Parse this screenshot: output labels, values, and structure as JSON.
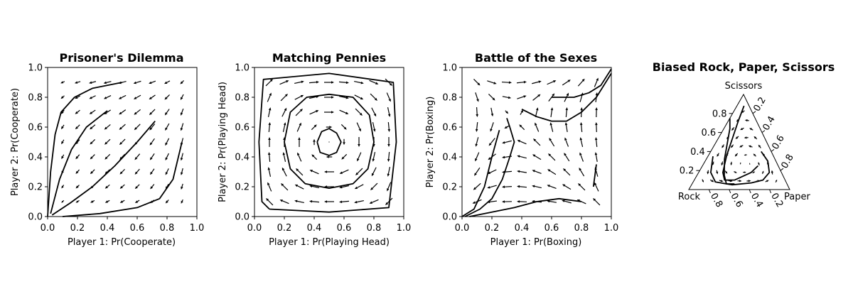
{
  "figure": {
    "background": "#ffffff",
    "ink_color": "#000000"
  },
  "chart_data": [
    {
      "type": "vector-field",
      "title": "Prisoner's Dilemma",
      "xlabel": "Player 1: Pr(Cooperate)",
      "ylabel": "Player 2: Pr(Cooperate)",
      "xlim": [
        0,
        1
      ],
      "ylim": [
        0,
        1
      ],
      "xticks": [
        "0.0",
        "0.2",
        "0.4",
        "0.6",
        "0.8",
        "1.0"
      ],
      "yticks": [
        "0.0",
        "0.2",
        "0.4",
        "0.6",
        "0.8",
        "1.0"
      ],
      "arrow_grid": [
        0.1,
        0.2,
        0.3,
        0.4,
        0.5,
        0.6,
        0.7,
        0.8,
        0.9
      ],
      "field": "prisoners_dilemma",
      "trajectories": [
        [
          [
            0.0,
            0.0
          ],
          [
            0.02,
            0.3
          ],
          [
            0.05,
            0.55
          ],
          [
            0.09,
            0.7
          ],
          [
            0.18,
            0.8
          ],
          [
            0.3,
            0.86
          ],
          [
            0.5,
            0.9
          ]
        ],
        [
          [
            0.02,
            0.02
          ],
          [
            0.08,
            0.25
          ],
          [
            0.16,
            0.45
          ],
          [
            0.26,
            0.6
          ],
          [
            0.4,
            0.71
          ]
        ],
        [
          [
            0.03,
            0.01
          ],
          [
            0.15,
            0.09
          ],
          [
            0.3,
            0.2
          ],
          [
            0.45,
            0.34
          ],
          [
            0.6,
            0.5
          ],
          [
            0.72,
            0.64
          ]
        ],
        [
          [
            0.1,
            0.0
          ],
          [
            0.35,
            0.02
          ],
          [
            0.6,
            0.06
          ],
          [
            0.75,
            0.12
          ],
          [
            0.84,
            0.25
          ],
          [
            0.9,
            0.5
          ]
        ]
      ]
    },
    {
      "type": "vector-field",
      "title": "Matching Pennies",
      "xlabel": "Player 1: Pr(Playing Head)",
      "ylabel": "Player 2: Pr(Playing Head)",
      "xlim": [
        0,
        1
      ],
      "ylim": [
        0,
        1
      ],
      "xticks": [
        "0.0",
        "0.2",
        "0.4",
        "0.6",
        "0.8",
        "1.0"
      ],
      "yticks": [
        "0.0",
        "0.2",
        "0.4",
        "0.6",
        "0.8",
        "1.0"
      ],
      "arrow_grid": [
        0.1,
        0.2,
        0.3,
        0.4,
        0.5,
        0.6,
        0.7,
        0.8,
        0.9
      ],
      "field": "matching_pennies",
      "trajectories": [
        [
          [
            0.1,
            0.05
          ],
          [
            0.5,
            0.03
          ],
          [
            0.9,
            0.06
          ],
          [
            0.95,
            0.5
          ],
          [
            0.93,
            0.9
          ],
          [
            0.5,
            0.96
          ],
          [
            0.06,
            0.92
          ],
          [
            0.03,
            0.5
          ],
          [
            0.05,
            0.1
          ],
          [
            0.1,
            0.05
          ]
        ],
        [
          [
            0.2,
            0.5
          ],
          [
            0.24,
            0.7
          ],
          [
            0.35,
            0.8
          ],
          [
            0.5,
            0.82
          ],
          [
            0.66,
            0.8
          ],
          [
            0.77,
            0.68
          ],
          [
            0.8,
            0.5
          ],
          [
            0.76,
            0.32
          ],
          [
            0.66,
            0.22
          ],
          [
            0.5,
            0.19
          ],
          [
            0.34,
            0.22
          ],
          [
            0.24,
            0.32
          ],
          [
            0.2,
            0.5
          ]
        ],
        [
          [
            0.42,
            0.5
          ],
          [
            0.45,
            0.57
          ],
          [
            0.5,
            0.59
          ],
          [
            0.55,
            0.56
          ],
          [
            0.58,
            0.5
          ],
          [
            0.55,
            0.43
          ],
          [
            0.5,
            0.41
          ],
          [
            0.44,
            0.43
          ],
          [
            0.42,
            0.5
          ]
        ]
      ]
    },
    {
      "type": "vector-field",
      "title": "Battle of the Sexes",
      "xlabel": "Player 1: Pr(Boxing)",
      "ylabel": "Player 2: Pr(Boxing)",
      "xlim": [
        0,
        1
      ],
      "ylim": [
        0,
        1
      ],
      "xticks": [
        "0.0",
        "0.2",
        "0.4",
        "0.6",
        "0.8",
        "1.0"
      ],
      "yticks": [
        "0.0",
        "0.2",
        "0.4",
        "0.6",
        "0.8",
        "1.0"
      ],
      "arrow_grid": [
        0.1,
        0.2,
        0.3,
        0.4,
        0.5,
        0.6,
        0.7,
        0.8,
        0.9
      ],
      "field": "battle_of_sexes",
      "trajectories": [
        [
          [
            0.0,
            0.0
          ],
          [
            0.08,
            0.05
          ],
          [
            0.15,
            0.2
          ],
          [
            0.2,
            0.4
          ],
          [
            0.25,
            0.58
          ]
        ],
        [
          [
            0.02,
            0.0
          ],
          [
            0.12,
            0.05
          ],
          [
            0.2,
            0.12
          ],
          [
            0.27,
            0.25
          ],
          [
            0.32,
            0.4
          ],
          [
            0.35,
            0.5
          ],
          [
            0.32,
            0.6
          ],
          [
            0.3,
            0.66
          ]
        ],
        [
          [
            0.05,
            0.0
          ],
          [
            0.2,
            0.03
          ],
          [
            0.35,
            0.06
          ],
          [
            0.5,
            0.1
          ],
          [
            0.65,
            0.12
          ],
          [
            0.8,
            0.1
          ]
        ],
        [
          [
            0.4,
            0.72
          ],
          [
            0.5,
            0.67
          ],
          [
            0.6,
            0.64
          ],
          [
            0.7,
            0.64
          ],
          [
            0.8,
            0.7
          ],
          [
            0.9,
            0.8
          ],
          [
            1.0,
            0.96
          ]
        ],
        [
          [
            0.6,
            0.8
          ],
          [
            0.75,
            0.8
          ],
          [
            0.85,
            0.83
          ],
          [
            0.93,
            0.88
          ],
          [
            1.0,
            0.99
          ]
        ],
        [
          [
            0.9,
            0.35
          ],
          [
            0.88,
            0.2
          ]
        ]
      ]
    },
    {
      "type": "ternary-vector-field",
      "title": "Biased Rock, Paper, Scissors",
      "corner_labels": {
        "bottom_left": "Rock",
        "bottom_right": "Paper",
        "top": "Scissors"
      },
      "left_ticks": [
        "0.2",
        "0.4",
        "0.6",
        "0.8"
      ],
      "right_ticks": [
        "0.2",
        "0.4",
        "0.6",
        "0.8"
      ],
      "bottom_ticks": [
        "0.8",
        "0.6",
        "0.4",
        "0.2"
      ],
      "trajectories": [
        [
          [
            0.25,
            0.0,
            0.75
          ],
          [
            0.3,
            0.06,
            0.64
          ],
          [
            0.4,
            0.12,
            0.48
          ],
          [
            0.5,
            0.18,
            0.32
          ],
          [
            0.58,
            0.27,
            0.15
          ],
          [
            0.6,
            0.34,
            0.06
          ],
          [
            0.52,
            0.42,
            0.06
          ]
        ],
        [
          [
            0.05,
            0.07,
            0.88
          ],
          [
            0.18,
            0.1,
            0.72
          ],
          [
            0.32,
            0.14,
            0.54
          ],
          [
            0.46,
            0.18,
            0.36
          ],
          [
            0.58,
            0.24,
            0.18
          ],
          [
            0.6,
            0.3,
            0.1
          ],
          [
            0.5,
            0.4,
            0.1
          ],
          [
            0.3,
            0.52,
            0.18
          ],
          [
            0.2,
            0.55,
            0.25
          ]
        ],
        [
          [
            0.6,
            0.05,
            0.35
          ],
          [
            0.7,
            0.12,
            0.18
          ],
          [
            0.7,
            0.22,
            0.08
          ],
          [
            0.55,
            0.4,
            0.05
          ],
          [
            0.35,
            0.58,
            0.07
          ],
          [
            0.22,
            0.68,
            0.1
          ],
          [
            0.12,
            0.7,
            0.18
          ],
          [
            0.08,
            0.62,
            0.3
          ],
          [
            0.1,
            0.5,
            0.4
          ]
        ]
      ]
    }
  ]
}
